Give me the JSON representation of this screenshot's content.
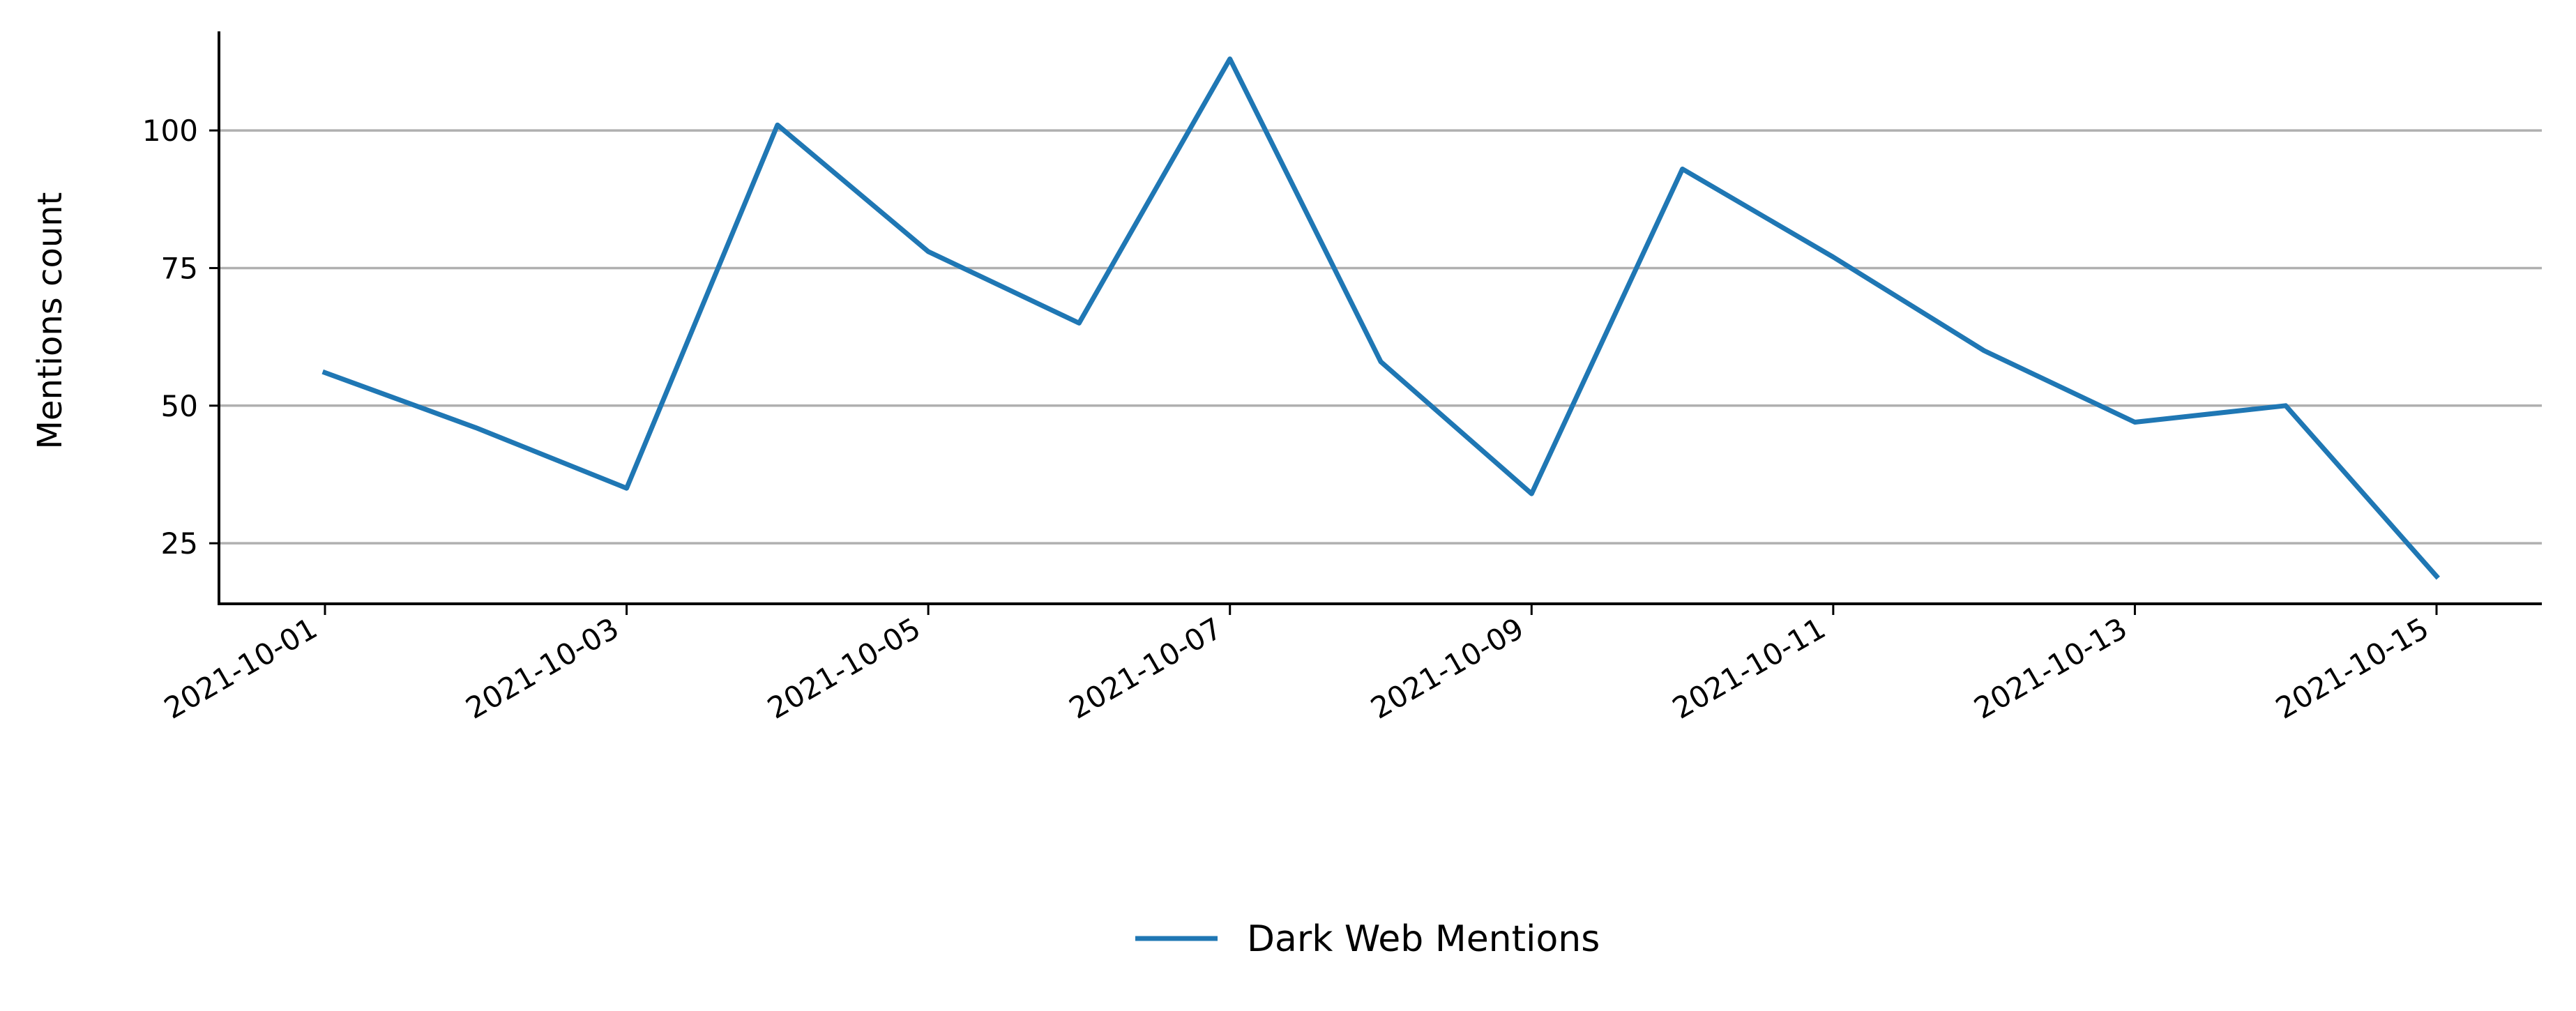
{
  "chart_data": {
    "type": "line",
    "title": "",
    "xlabel": "",
    "ylabel": "Mentions count",
    "x": [
      "2021-10-01",
      "2021-10-02",
      "2021-10-03",
      "2021-10-04",
      "2021-10-05",
      "2021-10-06",
      "2021-10-07",
      "2021-10-08",
      "2021-10-09",
      "2021-10-10",
      "2021-10-11",
      "2021-10-12",
      "2021-10-13",
      "2021-10-14",
      "2021-10-15"
    ],
    "series": [
      {
        "name": "Dark Web Mentions",
        "color": "#1f77b4",
        "values": [
          56,
          46,
          35,
          101,
          78,
          65,
          113,
          58,
          34,
          93,
          77,
          60,
          47,
          50,
          19
        ]
      }
    ],
    "xticks": [
      "2021-10-01",
      "2021-10-03",
      "2021-10-05",
      "2021-10-07",
      "2021-10-09",
      "2021-10-11",
      "2021-10-13",
      "2021-10-15"
    ],
    "yticks": [
      25,
      50,
      75,
      100
    ],
    "ylim": [
      14,
      118
    ],
    "grid": "horizontal",
    "legend": "bottom-center"
  }
}
